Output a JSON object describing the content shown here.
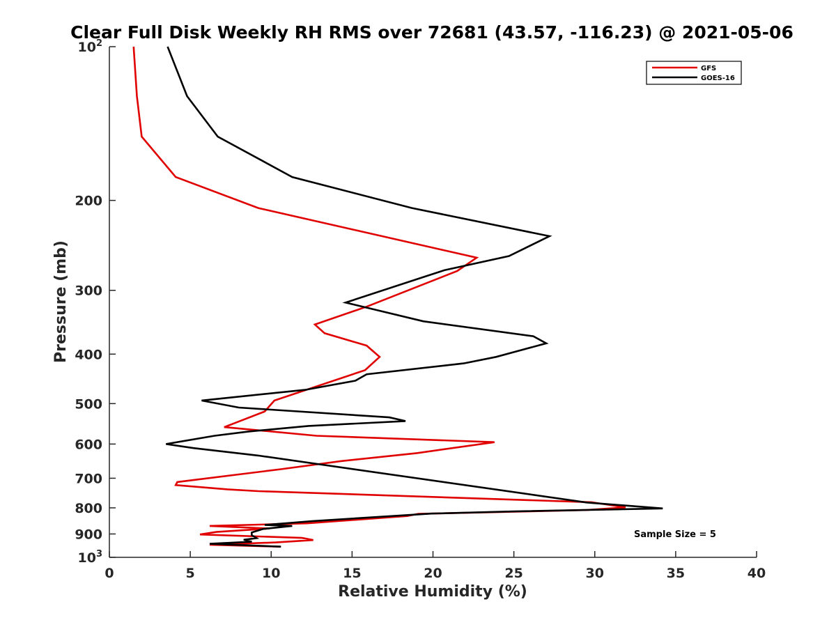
{
  "chart_data": {
    "type": "line",
    "title": "Clear Full Disk Weekly RH RMS over 72681 (43.57, -116.23) @ 2021-05-06",
    "xlabel": "Relative Humidity (%)",
    "ylabel": "Pressure (mb)",
    "xlim": [
      0,
      40
    ],
    "ylim": [
      100,
      1000
    ],
    "y_scale": "log",
    "y_reversed": true,
    "x_ticks": [
      0,
      5,
      10,
      15,
      20,
      25,
      30,
      35,
      40
    ],
    "x_tick_labels": [
      "0",
      "5",
      "10",
      "15",
      "20",
      "25",
      "30",
      "35",
      "40"
    ],
    "y_ticks": [
      100,
      200,
      300,
      400,
      500,
      600,
      700,
      800,
      900,
      1000
    ],
    "y_tick_labels": [
      {
        "base": "10",
        "exp": "2"
      },
      {
        "base": "200",
        "exp": ""
      },
      {
        "base": "300",
        "exp": ""
      },
      {
        "base": "400",
        "exp": ""
      },
      {
        "base": "500",
        "exp": ""
      },
      {
        "base": "600",
        "exp": ""
      },
      {
        "base": "700",
        "exp": ""
      },
      {
        "base": "800",
        "exp": ""
      },
      {
        "base": "900",
        "exp": ""
      },
      {
        "base": "10",
        "exp": "3"
      }
    ],
    "grid": false,
    "legend_position": "top-right",
    "annotation": "Sample Size = 5",
    "series": [
      {
        "name": "GFS",
        "color": "#e00000",
        "points": [
          [
            1.5,
            100
          ],
          [
            1.7,
            125
          ],
          [
            2.0,
            150
          ],
          [
            4.1,
            180
          ],
          [
            9.2,
            207
          ],
          [
            22.7,
            259
          ],
          [
            21.5,
            275
          ],
          [
            15.9,
            323
          ],
          [
            12.7,
            350
          ],
          [
            13.3,
            364
          ],
          [
            15.9,
            385
          ],
          [
            16.7,
            405
          ],
          [
            15.8,
            430
          ],
          [
            10.2,
            493
          ],
          [
            9.6,
            518
          ],
          [
            7.8,
            545
          ],
          [
            7.1,
            556
          ],
          [
            8.2,
            560
          ],
          [
            12.8,
            578
          ],
          [
            23.8,
            595
          ],
          [
            19.0,
            625
          ],
          [
            14.3,
            648
          ],
          [
            10.6,
            672
          ],
          [
            4.2,
            712
          ],
          [
            4.1,
            722
          ],
          [
            7.3,
            736
          ],
          [
            9.2,
            742
          ],
          [
            29.8,
            780
          ],
          [
            31.9,
            798
          ],
          [
            29.5,
            808
          ],
          [
            19.1,
            822
          ],
          [
            18.4,
            830
          ],
          [
            12.2,
            858
          ],
          [
            6.2,
            868
          ],
          [
            9.9,
            878
          ],
          [
            6.6,
            892
          ],
          [
            5.6,
            902
          ],
          [
            11.9,
            916
          ],
          [
            12.6,
            925
          ],
          [
            10.3,
            935
          ],
          [
            6.2,
            945
          ],
          [
            10.6,
            953
          ]
        ]
      },
      {
        "name": "GOES-16",
        "color": "#000000",
        "points": [
          [
            3.6,
            100
          ],
          [
            4.8,
            125
          ],
          [
            6.7,
            150
          ],
          [
            11.3,
            180
          ],
          [
            18.7,
            207
          ],
          [
            27.2,
            235
          ],
          [
            24.7,
            257
          ],
          [
            20.7,
            274
          ],
          [
            19.5,
            282
          ],
          [
            14.6,
            317
          ],
          [
            19.4,
            345
          ],
          [
            26.2,
            369
          ],
          [
            27.0,
            381
          ],
          [
            23.9,
            405
          ],
          [
            21.9,
            417
          ],
          [
            15.9,
            438
          ],
          [
            15.2,
            451
          ],
          [
            12.1,
            470
          ],
          [
            5.7,
            493
          ],
          [
            8.0,
            509
          ],
          [
            17.3,
            532
          ],
          [
            18.3,
            541
          ],
          [
            12.3,
            553
          ],
          [
            8.6,
            567
          ],
          [
            6.5,
            578
          ],
          [
            3.5,
            600
          ],
          [
            5.2,
            611
          ],
          [
            9.2,
            632
          ],
          [
            29.5,
            781
          ],
          [
            34.2,
            802
          ],
          [
            25.0,
            813
          ],
          [
            19.9,
            821
          ],
          [
            12.6,
            849
          ],
          [
            9.6,
            864
          ],
          [
            11.3,
            868
          ],
          [
            9.5,
            880
          ],
          [
            8.8,
            894
          ],
          [
            8.8,
            905
          ],
          [
            9.1,
            917
          ],
          [
            8.3,
            924
          ],
          [
            8.8,
            932
          ],
          [
            6.2,
            941
          ],
          [
            10.6,
            953
          ]
        ]
      }
    ]
  }
}
